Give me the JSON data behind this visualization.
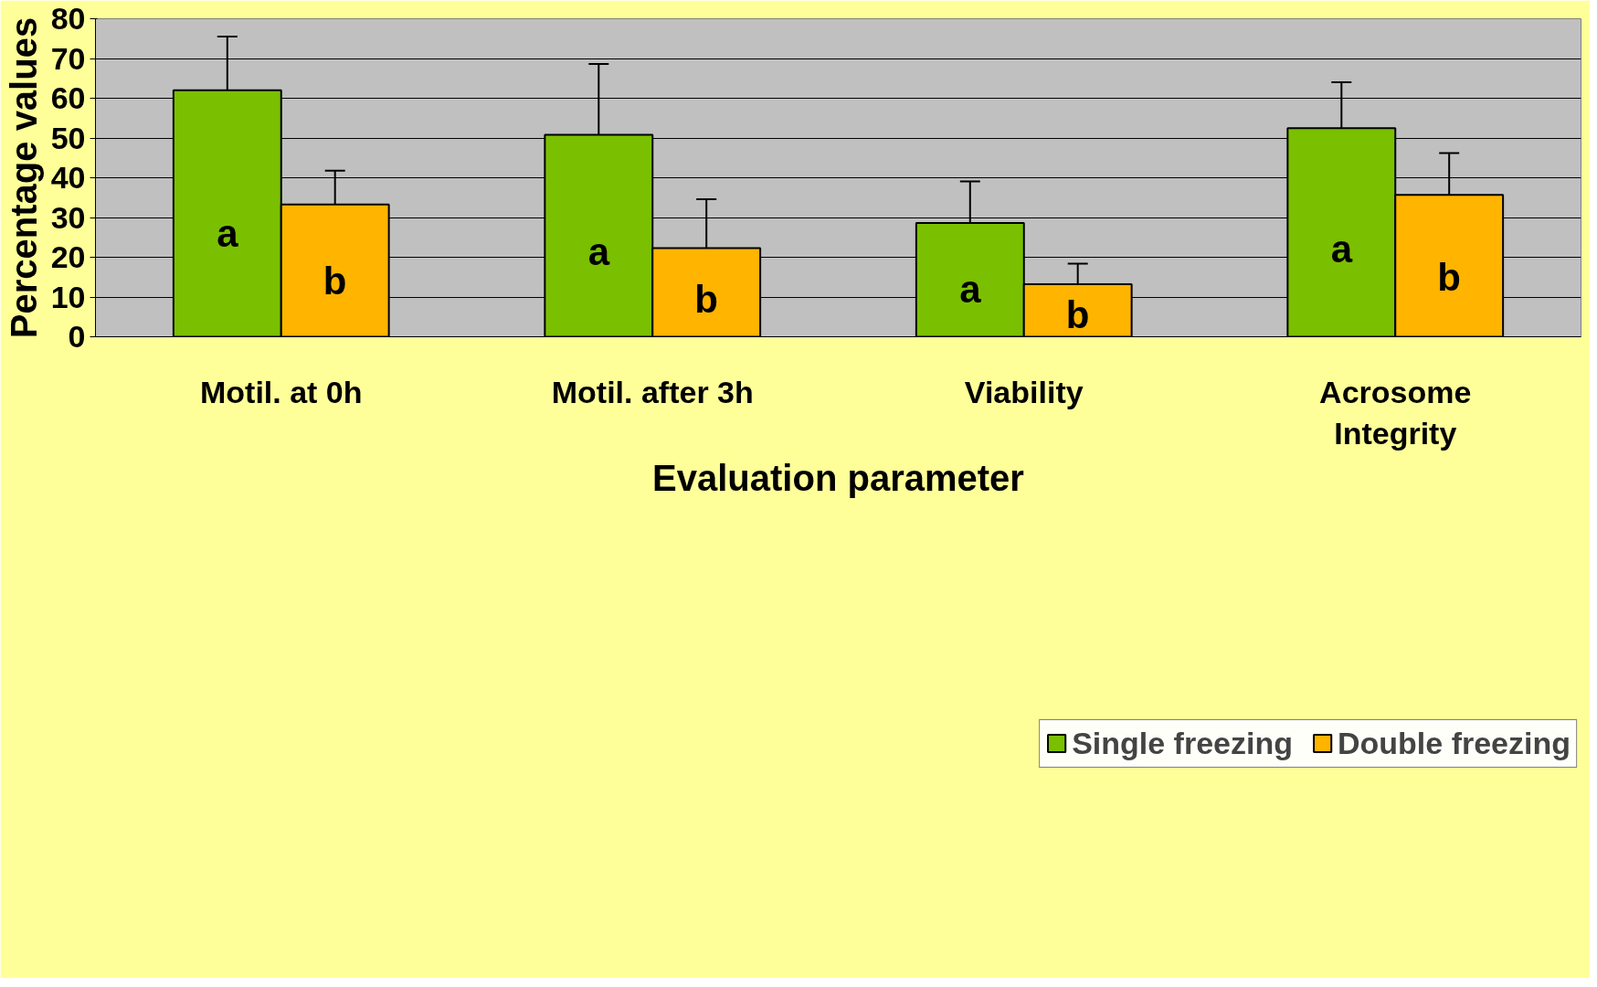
{
  "chart_data": {
    "type": "bar",
    "xlabel": "Evaluation parameter",
    "ylabel": "Percentage values",
    "categories": [
      "Motil. at 0h",
      "Motil. after 3h",
      "Viability",
      "Acrosome Integrity"
    ],
    "series": [
      {
        "name": "Single freezing",
        "color": "#7ac000",
        "values": [
          62,
          50.8,
          28.6,
          52.5
        ],
        "errors": [
          [
            62,
            75.5
          ],
          [
            50.8,
            68.6
          ],
          [
            28.6,
            39.1
          ],
          [
            52.5,
            64
          ]
        ],
        "value_labels": [
          "a",
          "a",
          "a",
          "a"
        ]
      },
      {
        "name": "Double freezing",
        "color": "#ffb400",
        "values": [
          33.3,
          22.3,
          13.2,
          35.7
        ],
        "errors": [
          [
            33.3,
            41.8
          ],
          [
            22.3,
            34.6
          ],
          [
            13.2,
            18.4
          ],
          [
            35.7,
            46.2
          ]
        ],
        "value_labels": [
          "b",
          "b",
          "b",
          "b"
        ]
      }
    ],
    "ylim": [
      0,
      80
    ],
    "yticks": [
      0,
      10,
      20,
      30,
      40,
      50,
      60,
      70,
      80
    ],
    "grid": "y",
    "legend": "bottom"
  }
}
